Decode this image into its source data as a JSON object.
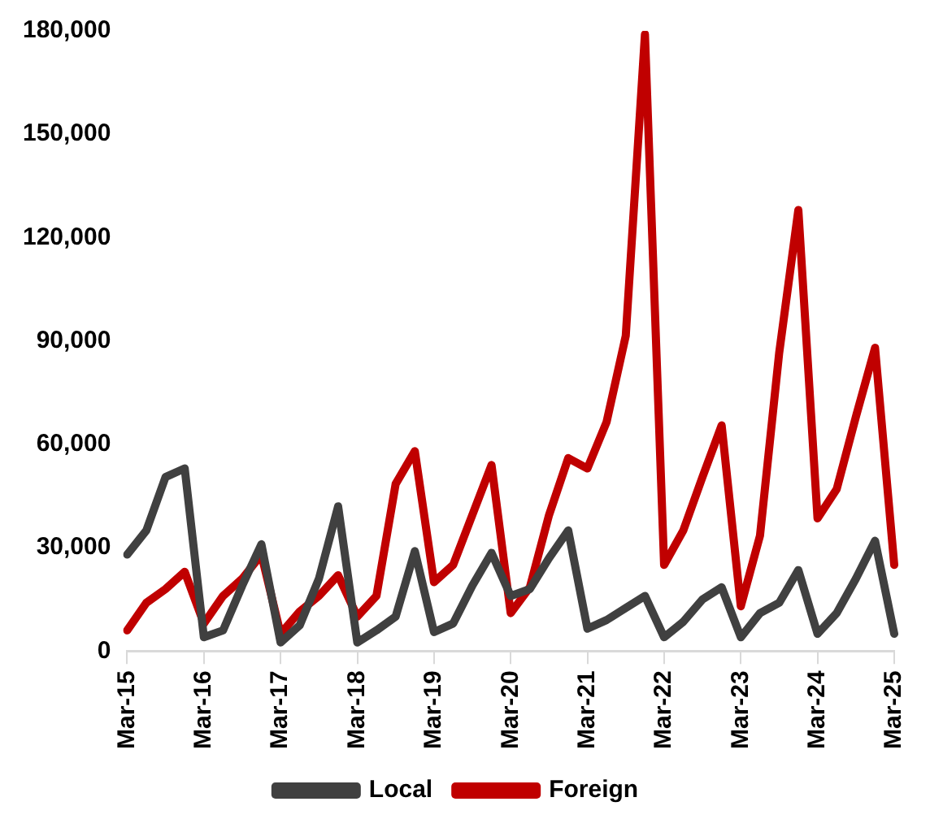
{
  "chart_data": {
    "type": "line",
    "categories": [
      "Mar-15",
      null,
      null,
      null,
      "Mar-16",
      null,
      null,
      null,
      "Mar-17",
      null,
      null,
      null,
      "Mar-18",
      null,
      null,
      null,
      "Mar-19",
      null,
      null,
      null,
      "Mar-20",
      null,
      null,
      null,
      "Mar-21",
      null,
      null,
      null,
      "Mar-22",
      null,
      null,
      null,
      "Mar-23",
      null,
      null,
      null,
      "Mar-24",
      null,
      null,
      null,
      "Mar-25"
    ],
    "series": [
      {
        "name": "Local",
        "color": "#404040",
        "values": [
          28000,
          35000,
          50500,
          53000,
          4000,
          6000,
          19000,
          31000,
          2500,
          7500,
          21000,
          42000,
          2500,
          6000,
          10000,
          29000,
          5500,
          8000,
          19000,
          28500,
          16000,
          18000,
          27000,
          35000,
          6500,
          9000,
          12500,
          16000,
          4000,
          8500,
          15000,
          18500,
          4000,
          11000,
          14000,
          23500,
          5000,
          11000,
          21000,
          32000,
          5000
        ]
      },
      {
        "name": "Foreign",
        "color": "#c00000",
        "values": [
          6000,
          14000,
          18000,
          23000,
          8000,
          16000,
          21000,
          28000,
          5000,
          11500,
          16000,
          22000,
          10000,
          16000,
          48500,
          58000,
          20000,
          25000,
          39500,
          54000,
          11000,
          18500,
          39500,
          56000,
          53000,
          66500,
          91500,
          179000,
          25000,
          35000,
          50500,
          65500,
          13000,
          33500,
          86500,
          128000,
          38500,
          47000,
          68000,
          88000,
          25000
        ]
      }
    ],
    "ylim": [
      0,
      180000
    ],
    "yticks": [
      0,
      {
        "value": 30000,
        "label": "30,000"
      },
      {
        "value": 60000,
        "label": "60,000"
      },
      {
        "value": 90000,
        "label": "90,000"
      },
      {
        "value": 120000,
        "label": "120,000"
      },
      {
        "value": 150000,
        "label": "150,000"
      },
      {
        "value": 180000,
        "label": "180,000"
      }
    ],
    "grid": false,
    "legend": "bottom",
    "marker": "none",
    "line_style": "solid"
  }
}
